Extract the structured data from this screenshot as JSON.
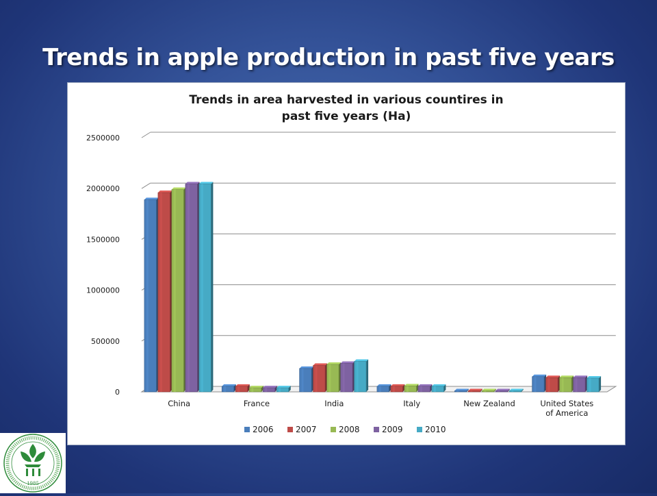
{
  "slide": {
    "title": "Trends in apple production in past five years"
  },
  "logo": {
    "name": "institute-emblem",
    "year": "1985"
  },
  "colors": {
    "series": [
      "#4a7ebb",
      "#be4b48",
      "#98b954",
      "#7e62a1",
      "#46aac5"
    ],
    "grid": "#8c8c8c"
  },
  "chart_data": {
    "type": "bar",
    "title_lines": [
      "Trends in area harvested in various countires in",
      "past five years (Ha)"
    ],
    "categories": [
      "China",
      "France",
      "India",
      "Italy",
      "New Zealand",
      "United States of America"
    ],
    "category_label_lines": [
      [
        "China"
      ],
      [
        "France"
      ],
      [
        "India"
      ],
      [
        "Italy"
      ],
      [
        "New Zealand"
      ],
      [
        "United States",
        "of America"
      ]
    ],
    "series": [
      {
        "name": "2006",
        "values": [
          1890000,
          55000,
          230000,
          55000,
          10000,
          150000
        ]
      },
      {
        "name": "2007",
        "values": [
          1960000,
          55000,
          260000,
          55000,
          10000,
          140000
        ]
      },
      {
        "name": "2008",
        "values": [
          1990000,
          40000,
          270000,
          58000,
          10000,
          140000
        ]
      },
      {
        "name": "2009",
        "values": [
          2045000,
          40000,
          280000,
          55000,
          10000,
          140000
        ]
      },
      {
        "name": "2010",
        "values": [
          2045000,
          40000,
          300000,
          55000,
          10000,
          135000
        ]
      }
    ],
    "yticks": [
      "0",
      "500000",
      "1000000",
      "1500000",
      "2000000",
      "2500000"
    ],
    "ylim": [
      0,
      2500000
    ],
    "grid": true,
    "legend_position": "bottom"
  }
}
